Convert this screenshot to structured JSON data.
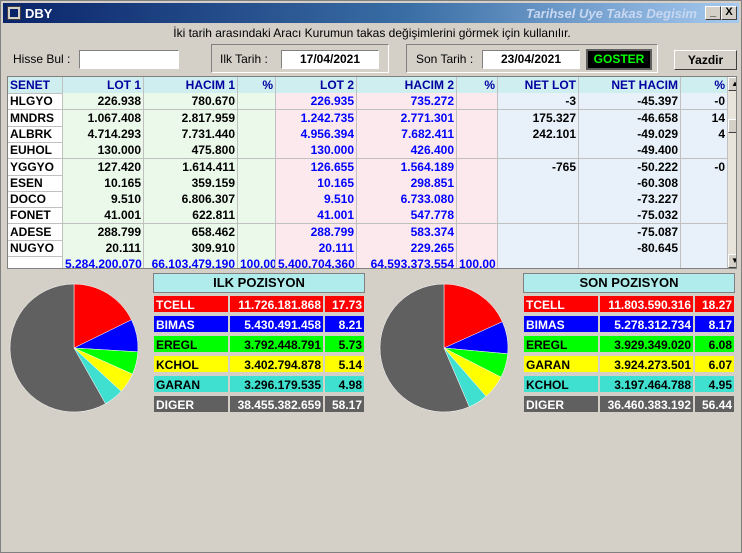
{
  "window": {
    "title": "DBY",
    "subtitle": "Tarihsel Uye Takas Degisim",
    "min_glyph": "_",
    "max_glyph": "□",
    "close_glyph": "X"
  },
  "hint": "İki tarih arasındaki  Aracı Kurumun takas değişimlerini görmek için kullanılır.",
  "toolbar": {
    "search_label": "Hisse Bul :",
    "search_value": "",
    "start_label": "Ilk Tarih :",
    "start_date": "17/04/2021",
    "end_label": "Son Tarih :",
    "end_date": "23/04/2021",
    "go_label": "GOSTER",
    "print_label": "Yazdir"
  },
  "grid": {
    "headers": [
      "SENET",
      "LOT 1",
      "HACIM 1",
      "%",
      "LOT 2",
      "HACIM 2",
      "%",
      "NET LOT",
      "NET HACIM",
      "%"
    ],
    "rows": [
      {
        "senet": "HLGYO",
        "lot1": "226.938",
        "hacim1": "780.670",
        "p1": "",
        "lot2": "226.935",
        "hacim2": "735.272",
        "p2": "",
        "netlot": "-3",
        "nethacim": "-45.397",
        "p3": "-0"
      },
      {
        "senet": "MNDRS",
        "lot1": "1.067.408",
        "hacim1": "2.817.959",
        "p1": "",
        "lot2": "1.242.735",
        "hacim2": "2.771.301",
        "p2": "",
        "netlot": "175.327",
        "nethacim": "-46.658",
        "p3": "14"
      },
      {
        "senet": "ALBRK",
        "lot1": "4.714.293",
        "hacim1": "7.731.440",
        "p1": "",
        "lot2": "4.956.394",
        "hacim2": "7.682.411",
        "p2": "",
        "netlot": "242.101",
        "nethacim": "-49.029",
        "p3": "4"
      },
      {
        "senet": "EUHOL",
        "lot1": "130.000",
        "hacim1": "475.800",
        "p1": "",
        "lot2": "130.000",
        "hacim2": "426.400",
        "p2": "",
        "netlot": "",
        "nethacim": "-49.400",
        "p3": ""
      },
      {
        "senet": "YGGYO",
        "lot1": "127.420",
        "hacim1": "1.614.411",
        "p1": "",
        "lot2": "126.655",
        "hacim2": "1.564.189",
        "p2": "",
        "netlot": "-765",
        "nethacim": "-50.222",
        "p3": "-0"
      },
      {
        "senet": "ESEN",
        "lot1": "10.165",
        "hacim1": "359.159",
        "p1": "",
        "lot2": "10.165",
        "hacim2": "298.851",
        "p2": "",
        "netlot": "",
        "nethacim": "-60.308",
        "p3": ""
      },
      {
        "senet": "DOCO",
        "lot1": "9.510",
        "hacim1": "6.806.307",
        "p1": "",
        "lot2": "9.510",
        "hacim2": "6.733.080",
        "p2": "",
        "netlot": "",
        "nethacim": "-73.227",
        "p3": ""
      },
      {
        "senet": "FONET",
        "lot1": "41.001",
        "hacim1": "622.811",
        "p1": "",
        "lot2": "41.001",
        "hacim2": "547.778",
        "p2": "",
        "netlot": "",
        "nethacim": "-75.032",
        "p3": ""
      },
      {
        "senet": "ADESE",
        "lot1": "288.799",
        "hacim1": "658.462",
        "p1": "",
        "lot2": "288.799",
        "hacim2": "583.374",
        "p2": "",
        "netlot": "",
        "nethacim": "-75.087",
        "p3": ""
      },
      {
        "senet": "NUGYO",
        "lot1": "20.111",
        "hacim1": "309.910",
        "p1": "",
        "lot2": "20.111",
        "hacim2": "229.265",
        "p2": "",
        "netlot": "",
        "nethacim": "-80.645",
        "p3": ""
      }
    ],
    "totals": {
      "lot1": "5.284.200.070",
      "hacim1": "66.103.479.190",
      "p1": "100,00",
      "lot2": "5.400.704.360",
      "hacim2": "64.593.373.554",
      "p2": "100,00"
    }
  },
  "ilk": {
    "title": "ILK POZISYON",
    "rows": [
      {
        "name": "TCELL",
        "value": "11.726.181.868",
        "pct": "17.73",
        "color": "#ff0000",
        "text": "#ffffff",
        "share": 17.73
      },
      {
        "name": "BIMAS",
        "value": "5.430.491.458",
        "pct": "8.21",
        "color": "#0000ff",
        "text": "#ffffff",
        "share": 8.21
      },
      {
        "name": "EREGL",
        "value": "3.792.448.791",
        "pct": "5.73",
        "color": "#00ff00",
        "text": "#000000",
        "share": 5.73
      },
      {
        "name": "KCHOL",
        "value": "3.402.794.878",
        "pct": "5.14",
        "color": "#ffff00",
        "text": "#000000",
        "share": 5.14
      },
      {
        "name": "GARAN",
        "value": "3.296.179.535",
        "pct": "4.98",
        "color": "#40e0d0",
        "text": "#000000",
        "share": 4.98
      },
      {
        "name": "DIGER",
        "value": "38.455.382.659",
        "pct": "58.17",
        "color": "#606060",
        "text": "#ffffff",
        "share": 58.17
      }
    ]
  },
  "son": {
    "title": "SON POZISYON",
    "rows": [
      {
        "name": "TCELL",
        "value": "11.803.590.316",
        "pct": "18.27",
        "color": "#ff0000",
        "text": "#ffffff",
        "share": 18.27
      },
      {
        "name": "BIMAS",
        "value": "5.278.312.734",
        "pct": "8.17",
        "color": "#0000ff",
        "text": "#ffffff",
        "share": 8.17
      },
      {
        "name": "EREGL",
        "value": "3.929.349.020",
        "pct": "6.08",
        "color": "#00ff00",
        "text": "#000000",
        "share": 6.08
      },
      {
        "name": "GARAN",
        "value": "3.924.273.501",
        "pct": "6.07",
        "color": "#ffff00",
        "text": "#000000",
        "share": 6.07
      },
      {
        "name": "KCHOL",
        "value": "3.197.464.788",
        "pct": "4.95",
        "color": "#40e0d0",
        "text": "#000000",
        "share": 4.95
      },
      {
        "name": "DIGER",
        "value": "36.460.383.192",
        "pct": "56.44",
        "color": "#606060",
        "text": "#ffffff",
        "share": 56.44
      }
    ]
  }
}
